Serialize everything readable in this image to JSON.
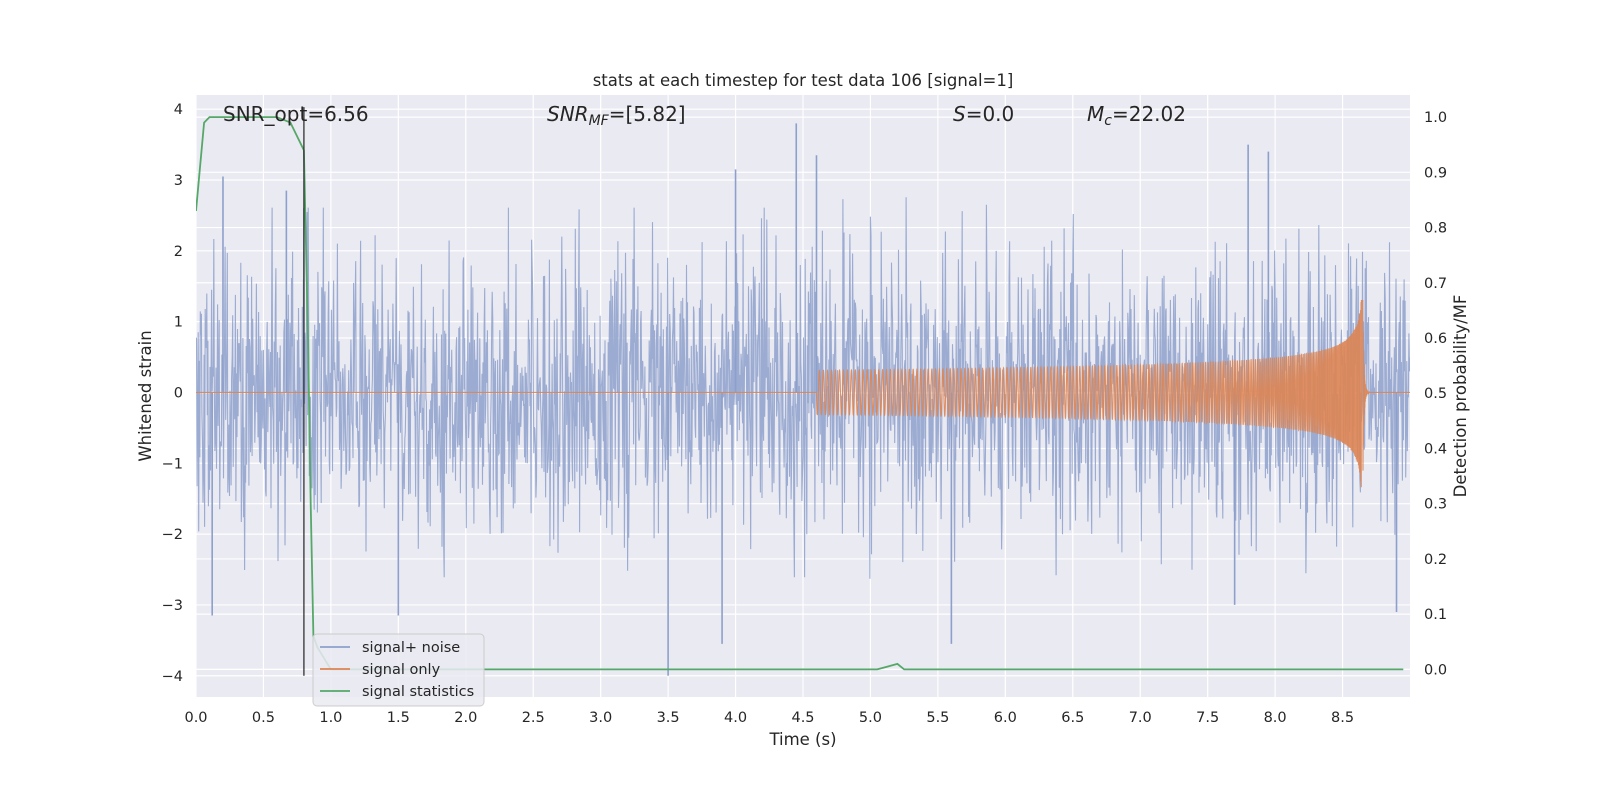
{
  "chart_data": {
    "type": "line",
    "title": "stats at each timestep for test data 106 [signal=1]",
    "xlabel": "Time (s)",
    "ylabel_left": "Whitened strain",
    "ylabel_right": "Detection probability/MF",
    "xlim": [
      0.0,
      9.0
    ],
    "ylim_left": [
      -4.3,
      4.2
    ],
    "ylim_right": [
      -0.05,
      1.04
    ],
    "x_ticks": [
      0.0,
      0.5,
      1.0,
      1.5,
      2.0,
      2.5,
      3.0,
      3.5,
      4.0,
      4.5,
      5.0,
      5.5,
      6.0,
      6.5,
      7.0,
      7.5,
      8.0,
      8.5
    ],
    "x_tick_labels": [
      "0.0",
      "0.5",
      "1.0",
      "1.5",
      "2.0",
      "2.5",
      "3.0",
      "3.5",
      "4.0",
      "4.5",
      "5.0",
      "5.5",
      "6.0",
      "6.5",
      "7.0",
      "7.5",
      "8.0",
      "8.5"
    ],
    "y_ticks_left": [
      -4,
      -3,
      -2,
      -1,
      0,
      1,
      2,
      3,
      4
    ],
    "y_tick_labels_left": [
      "−4",
      "−3",
      "−2",
      "−1",
      "0",
      "1",
      "2",
      "3",
      "4"
    ],
    "y_ticks_right": [
      0.0,
      0.1,
      0.2,
      0.3,
      0.4,
      0.5,
      0.6,
      0.7,
      0.8,
      0.9,
      1.0
    ],
    "y_tick_labels_right": [
      "0.0",
      "0.1",
      "0.2",
      "0.3",
      "0.4",
      "0.5",
      "0.6",
      "0.7",
      "0.8",
      "0.9",
      "1.0"
    ],
    "grid": true,
    "legend_position": "lower-left",
    "annotations": {
      "snr_opt": "SNR_opt=6.56",
      "snr_mf_main": "SNR",
      "snr_mf_sub": "MF",
      "snr_mf_rest": "=[5.82]",
      "s_main": "S",
      "s_rest": "=0.0",
      "mc_main": "M",
      "mc_sub": "c",
      "mc_rest": "=22.02"
    },
    "marker_line_x": 0.8,
    "series": [
      {
        "name": "signal+ noise",
        "color": "#8da0cb",
        "axis": "left",
        "kind": "noise",
        "dt": 0.004,
        "typical_amplitude": 1.8,
        "peaks": [
          {
            "x": 0.2,
            "y": 3.05
          },
          {
            "x": 0.12,
            "y": -3.15
          },
          {
            "x": 0.67,
            "y": 2.85
          },
          {
            "x": 0.8,
            "y": 2.6
          },
          {
            "x": 1.5,
            "y": -3.15
          },
          {
            "x": 3.5,
            "y": -4.0
          },
          {
            "x": 3.9,
            "y": -3.55
          },
          {
            "x": 4.0,
            "y": 3.15
          },
          {
            "x": 4.45,
            "y": 3.8
          },
          {
            "x": 4.6,
            "y": 3.35
          },
          {
            "x": 5.6,
            "y": -3.55
          },
          {
            "x": 7.7,
            "y": -3.0
          },
          {
            "x": 7.8,
            "y": 3.5
          },
          {
            "x": 7.95,
            "y": 3.4
          },
          {
            "x": 8.9,
            "y": -3.1
          }
        ]
      },
      {
        "name": "signal only",
        "color": "#dd8452",
        "axis": "left",
        "kind": "chirp",
        "start": 4.6,
        "merger": 8.65,
        "peak_amplitude": 1.4,
        "ringdown": 0.01
      },
      {
        "name": "signal statistics",
        "color": "#55a868",
        "axis": "right",
        "kind": "line",
        "x": [
          0.0,
          0.06,
          0.1,
          0.2,
          0.4,
          0.6,
          0.7,
          0.8,
          0.83,
          0.85,
          0.87,
          0.9,
          0.95,
          1.0,
          5.05,
          5.2,
          5.25,
          8.95
        ],
        "y": [
          0.83,
          0.99,
          1.0,
          1.0,
          1.0,
          1.0,
          0.99,
          0.94,
          0.6,
          0.3,
          0.06,
          0.04,
          0.02,
          0.0,
          0.0,
          0.01,
          0.0,
          0.0
        ]
      }
    ]
  }
}
